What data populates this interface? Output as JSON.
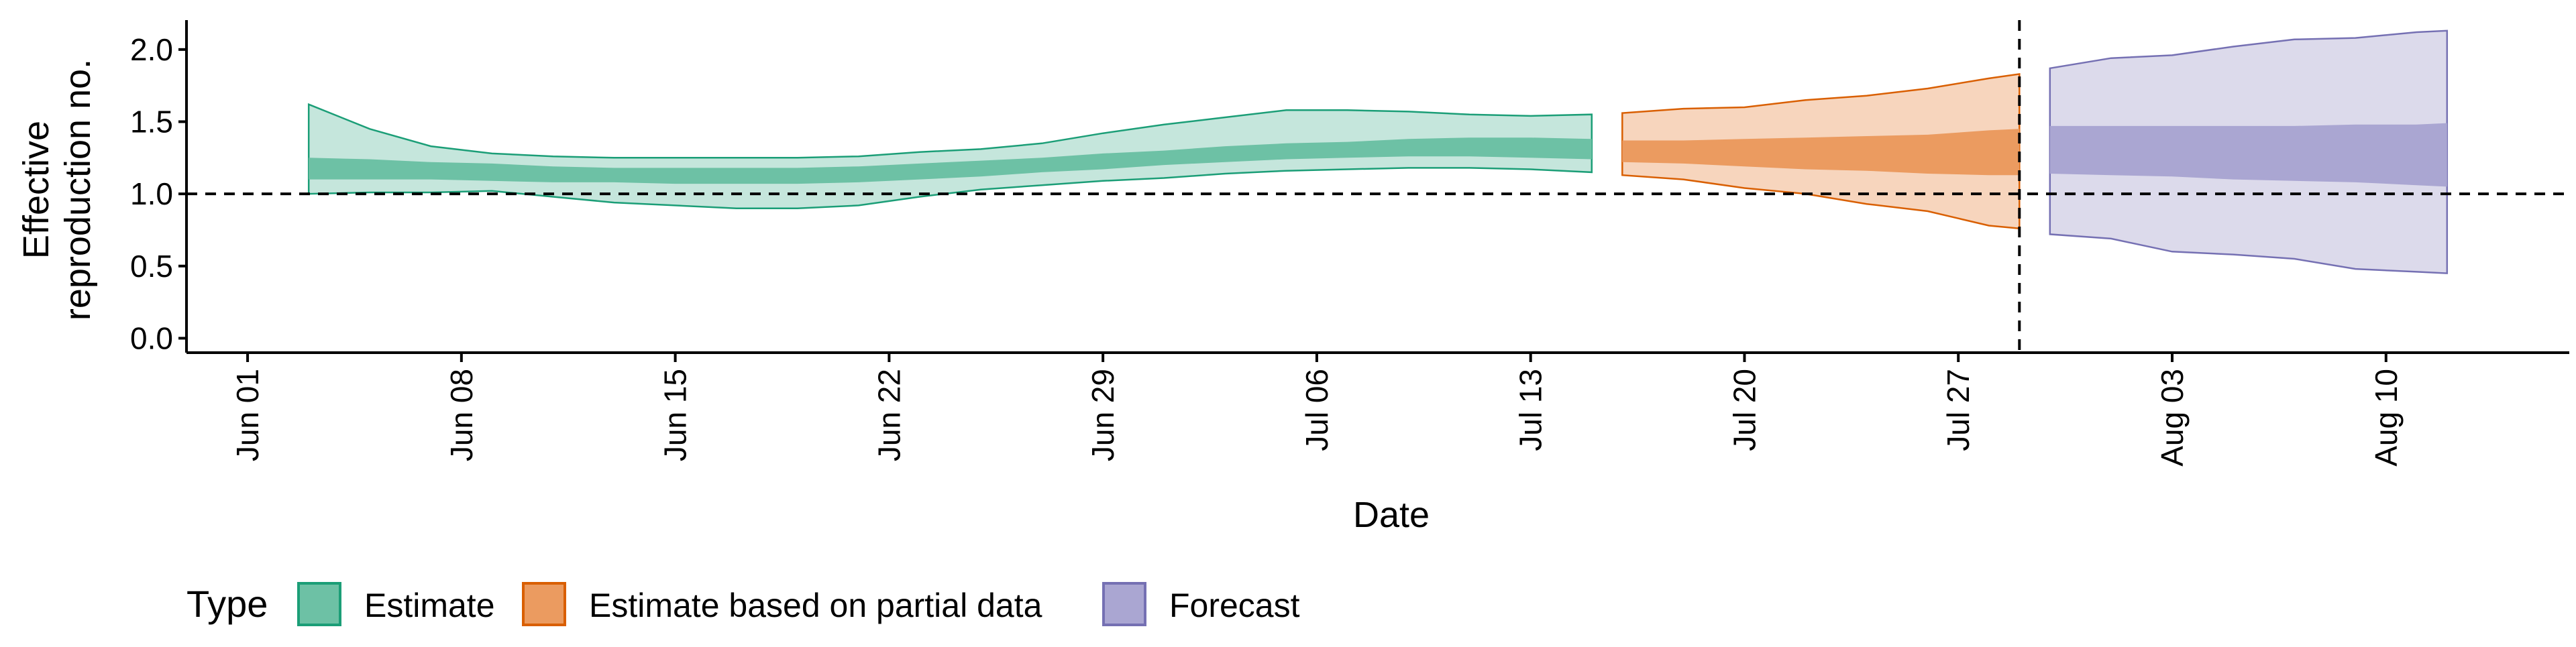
{
  "chart_data": {
    "type": "area",
    "xlabel": "Date",
    "ylabel_lines": [
      "Effective",
      "reproduction no."
    ],
    "ylim": [
      -0.1,
      2.25
    ],
    "y_ticks": [
      0.0,
      0.5,
      1.0,
      1.5,
      2.0
    ],
    "y_tick_labels": [
      "0.0",
      "0.5",
      "1.0",
      "1.5",
      "2.0"
    ],
    "x_ticks": [
      "2020-06-01",
      "2020-06-08",
      "2020-06-15",
      "2020-06-22",
      "2020-06-29",
      "2020-07-06",
      "2020-07-13",
      "2020-07-20",
      "2020-07-27",
      "2020-08-03",
      "2020-08-10"
    ],
    "x_tick_labels": [
      "Jun 01",
      "Jun 08",
      "Jun 15",
      "Jun 22",
      "Jun 29",
      "Jul 06",
      "Jul 13",
      "Jul 20",
      "Jul 27",
      "Aug 03",
      "Aug 10"
    ],
    "xlim": [
      "2020-05-30",
      "2020-08-16"
    ],
    "reference_hline": 1.0,
    "reference_vline": "2020-07-29",
    "legend": {
      "title": "Type",
      "position": "bottom-left",
      "items": [
        "Estimate",
        "Estimate based on partial data",
        "Forecast"
      ]
    },
    "series": [
      {
        "name": "Estimate",
        "color": "#1b9e77",
        "outer_fill": "#c5e6dc",
        "inner_fill": "#6dc1a5",
        "points": [
          {
            "date": "2020-06-03",
            "lo90": 1.0,
            "lo50": 1.1,
            "hi50": 1.25,
            "hi90": 1.62
          },
          {
            "date": "2020-06-05",
            "lo90": 1.01,
            "lo50": 1.1,
            "hi50": 1.24,
            "hi90": 1.45
          },
          {
            "date": "2020-06-07",
            "lo90": 1.01,
            "lo50": 1.1,
            "hi50": 1.22,
            "hi90": 1.33
          },
          {
            "date": "2020-06-09",
            "lo90": 1.02,
            "lo50": 1.09,
            "hi50": 1.21,
            "hi90": 1.28
          },
          {
            "date": "2020-06-11",
            "lo90": 0.98,
            "lo50": 1.08,
            "hi50": 1.19,
            "hi90": 1.26
          },
          {
            "date": "2020-06-13",
            "lo90": 0.94,
            "lo50": 1.08,
            "hi50": 1.18,
            "hi90": 1.25
          },
          {
            "date": "2020-06-15",
            "lo90": 0.92,
            "lo50": 1.07,
            "hi50": 1.18,
            "hi90": 1.25
          },
          {
            "date": "2020-06-17",
            "lo90": 0.9,
            "lo50": 1.07,
            "hi50": 1.18,
            "hi90": 1.25
          },
          {
            "date": "2020-06-19",
            "lo90": 0.9,
            "lo50": 1.07,
            "hi50": 1.18,
            "hi90": 1.25
          },
          {
            "date": "2020-06-21",
            "lo90": 0.92,
            "lo50": 1.08,
            "hi50": 1.19,
            "hi90": 1.26
          },
          {
            "date": "2020-06-23",
            "lo90": 0.98,
            "lo50": 1.1,
            "hi50": 1.21,
            "hi90": 1.29
          },
          {
            "date": "2020-06-25",
            "lo90": 1.03,
            "lo50": 1.12,
            "hi50": 1.23,
            "hi90": 1.31
          },
          {
            "date": "2020-06-27",
            "lo90": 1.06,
            "lo50": 1.15,
            "hi50": 1.25,
            "hi90": 1.35
          },
          {
            "date": "2020-06-29",
            "lo90": 1.09,
            "lo50": 1.17,
            "hi50": 1.28,
            "hi90": 1.42
          },
          {
            "date": "2020-07-01",
            "lo90": 1.11,
            "lo50": 1.2,
            "hi50": 1.3,
            "hi90": 1.48
          },
          {
            "date": "2020-07-03",
            "lo90": 1.14,
            "lo50": 1.22,
            "hi50": 1.33,
            "hi90": 1.53
          },
          {
            "date": "2020-07-05",
            "lo90": 1.16,
            "lo50": 1.24,
            "hi50": 1.35,
            "hi90": 1.58
          },
          {
            "date": "2020-07-07",
            "lo90": 1.17,
            "lo50": 1.25,
            "hi50": 1.36,
            "hi90": 1.58
          },
          {
            "date": "2020-07-09",
            "lo90": 1.18,
            "lo50": 1.26,
            "hi50": 1.38,
            "hi90": 1.57
          },
          {
            "date": "2020-07-11",
            "lo90": 1.18,
            "lo50": 1.26,
            "hi50": 1.39,
            "hi90": 1.55
          },
          {
            "date": "2020-07-13",
            "lo90": 1.17,
            "lo50": 1.25,
            "hi50": 1.39,
            "hi90": 1.54
          },
          {
            "date": "2020-07-15",
            "lo90": 1.15,
            "lo50": 1.24,
            "hi50": 1.38,
            "hi90": 1.55
          }
        ]
      },
      {
        "name": "Estimate based on partial data",
        "color": "#d95f02",
        "outer_fill": "#f7d5bd",
        "inner_fill": "#eb9b60",
        "points": [
          {
            "date": "2020-07-16",
            "lo90": 1.13,
            "lo50": 1.22,
            "hi50": 1.37,
            "hi90": 1.56
          },
          {
            "date": "2020-07-18",
            "lo90": 1.1,
            "lo50": 1.21,
            "hi50": 1.37,
            "hi90": 1.59
          },
          {
            "date": "2020-07-20",
            "lo90": 1.04,
            "lo50": 1.19,
            "hi50": 1.38,
            "hi90": 1.6
          },
          {
            "date": "2020-07-22",
            "lo90": 1.0,
            "lo50": 1.17,
            "hi50": 1.39,
            "hi90": 1.65
          },
          {
            "date": "2020-07-24",
            "lo90": 0.93,
            "lo50": 1.16,
            "hi50": 1.4,
            "hi90": 1.68
          },
          {
            "date": "2020-07-26",
            "lo90": 0.88,
            "lo50": 1.14,
            "hi50": 1.41,
            "hi90": 1.73
          },
          {
            "date": "2020-07-28",
            "lo90": 0.78,
            "lo50": 1.13,
            "hi50": 1.44,
            "hi90": 1.8
          },
          {
            "date": "2020-07-29",
            "lo90": 0.76,
            "lo50": 1.13,
            "hi50": 1.45,
            "hi90": 1.83
          }
        ]
      },
      {
        "name": "Forecast",
        "color": "#7570b3",
        "outer_fill": "#dcdaeb",
        "inner_fill": "#aaa6d2",
        "points": [
          {
            "date": "2020-07-30",
            "lo90": 0.72,
            "lo50": 1.14,
            "hi50": 1.47,
            "hi90": 1.87
          },
          {
            "date": "2020-08-01",
            "lo90": 0.69,
            "lo50": 1.13,
            "hi50": 1.47,
            "hi90": 1.94
          },
          {
            "date": "2020-08-03",
            "lo90": 0.6,
            "lo50": 1.12,
            "hi50": 1.47,
            "hi90": 1.96
          },
          {
            "date": "2020-08-05",
            "lo90": 0.58,
            "lo50": 1.1,
            "hi50": 1.47,
            "hi90": 2.02
          },
          {
            "date": "2020-08-07",
            "lo90": 0.55,
            "lo50": 1.09,
            "hi50": 1.47,
            "hi90": 2.07
          },
          {
            "date": "2020-08-09",
            "lo90": 0.48,
            "lo50": 1.08,
            "hi50": 1.48,
            "hi90": 2.08
          },
          {
            "date": "2020-08-11",
            "lo90": 0.46,
            "lo50": 1.06,
            "hi50": 1.48,
            "hi90": 2.12
          },
          {
            "date": "2020-08-12",
            "lo90": 0.45,
            "lo50": 1.05,
            "hi50": 1.49,
            "hi90": 2.13
          }
        ]
      }
    ]
  }
}
